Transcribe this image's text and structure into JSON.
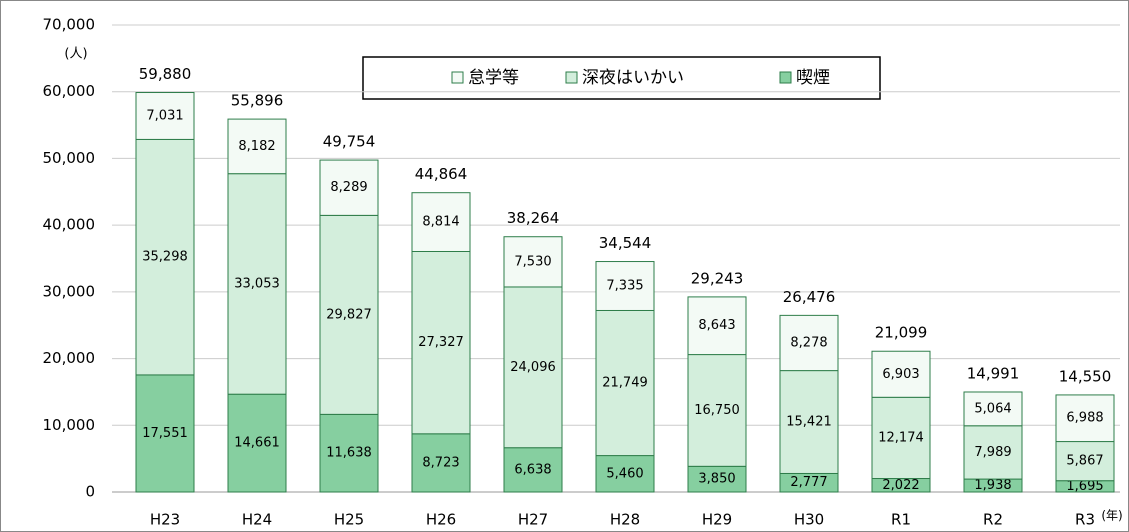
{
  "chart_data": {
    "type": "stacked_bar",
    "y_axis_label": "(人)",
    "x_axis_label": "(年)",
    "categories": [
      "H23",
      "H24",
      "H25",
      "H26",
      "H27",
      "H28",
      "H29",
      "H30",
      "R1",
      "R2",
      "R3"
    ],
    "series": [
      {
        "name": "怠学等",
        "color": "#f3faf5",
        "values": [
          7031,
          8182,
          8289,
          8814,
          7530,
          7335,
          8643,
          8278,
          6903,
          5064,
          6988
        ],
        "value_labels": [
          "7,031",
          "8,182",
          "8,289",
          "8,814",
          "7,530",
          "7,335",
          "8,643",
          "8,278",
          "6,903",
          "5,064",
          "6,988"
        ]
      },
      {
        "name": "深夜はいかい",
        "color": "#d3eedc",
        "values": [
          35298,
          33053,
          29827,
          27327,
          24096,
          21749,
          16750,
          15421,
          12174,
          7989,
          5867
        ],
        "value_labels": [
          "35,298",
          "33,053",
          "29,827",
          "27,327",
          "24,096",
          "21,749",
          "16,750",
          "15,421",
          "12,174",
          "7,989",
          "5,867"
        ]
      },
      {
        "name": "喫煙",
        "color": "#86cfa0",
        "values": [
          17551,
          14661,
          11638,
          8723,
          6638,
          5460,
          3850,
          2777,
          2022,
          1938,
          1695
        ],
        "value_labels": [
          "17,551",
          "14,661",
          "11,638",
          "8,723",
          "6,638",
          "5,460",
          "3,850",
          "2,777",
          "2,022",
          "1,938",
          "1,695"
        ]
      }
    ],
    "totals": [
      59880,
      55896,
      49754,
      44864,
      38264,
      34544,
      29243,
      26476,
      21099,
      14991,
      14550
    ],
    "total_labels": [
      "59,880",
      "55,896",
      "49,754",
      "44,864",
      "38,264",
      "34,544",
      "29,243",
      "26,476",
      "21,099",
      "14,991",
      "14,550"
    ],
    "ylim": [
      0,
      70000
    ],
    "yticks": [
      0,
      {
        "value": 10000,
        "label": "10,000"
      },
      {
        "value": 20000,
        "label": "20,000"
      },
      {
        "value": 30000,
        "label": "30,000"
      },
      {
        "value": 40000,
        "label": "40,000"
      },
      {
        "value": 50000,
        "label": "50,000"
      },
      {
        "value": 60000,
        "label": "60,000"
      },
      {
        "value": 70000,
        "label": "70,000"
      }
    ],
    "grid": true,
    "legend": "top"
  }
}
